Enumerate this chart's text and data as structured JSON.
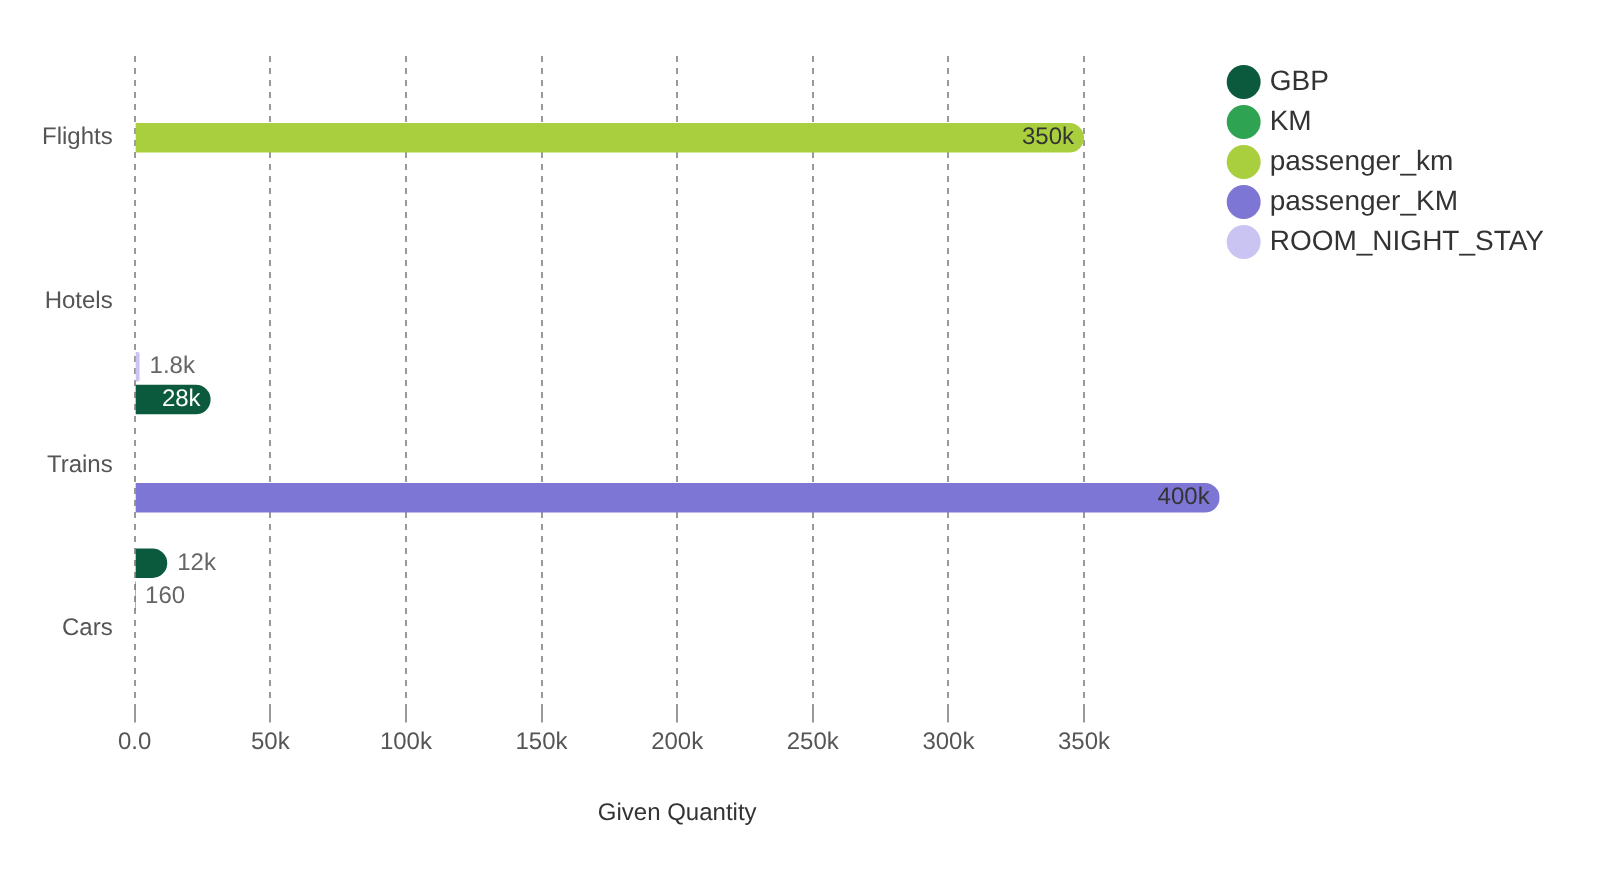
{
  "chart_data": {
    "type": "bar",
    "orientation": "horizontal",
    "xlabel": "Given Quantity",
    "categories": [
      "Flights",
      "Hotels",
      "Trains",
      "Cars"
    ],
    "series": [
      {
        "name": "GBP",
        "color": "#0b5a3e",
        "values": [
          null,
          null,
          28000,
          12000
        ],
        "value_labels": [
          null,
          null,
          "28k",
          "12k"
        ]
      },
      {
        "name": "KM",
        "color": "#2ea453",
        "values": [
          null,
          null,
          null,
          160
        ],
        "value_labels": [
          null,
          null,
          null,
          "160"
        ]
      },
      {
        "name": "passenger_km",
        "color": "#a9cf3e",
        "values": [
          350000,
          null,
          null,
          null
        ],
        "value_labels": [
          "350k",
          null,
          null,
          null
        ]
      },
      {
        "name": "passenger_KM",
        "color": "#7e76d4",
        "values": [
          null,
          null,
          400000,
          null
        ],
        "value_labels": [
          null,
          null,
          "400k",
          null
        ]
      },
      {
        "name": "ROOM_NIGHT_STAY",
        "color": "#c9c4f2",
        "values": [
          null,
          1800,
          null,
          null
        ],
        "value_labels": [
          null,
          "1.8k",
          null,
          null
        ]
      }
    ],
    "xlim": [
      0,
      400000
    ],
    "xticks": [
      {
        "value": 0,
        "label": "0.0"
      },
      {
        "value": 50000,
        "label": "50k"
      },
      {
        "value": 100000,
        "label": "100k"
      },
      {
        "value": 150000,
        "label": "150k"
      },
      {
        "value": 200000,
        "label": "200k"
      },
      {
        "value": 250000,
        "label": "250k"
      },
      {
        "value": 300000,
        "label": "300k"
      },
      {
        "value": 350000,
        "label": "350k"
      }
    ],
    "grid": "x",
    "legend": "top right"
  }
}
